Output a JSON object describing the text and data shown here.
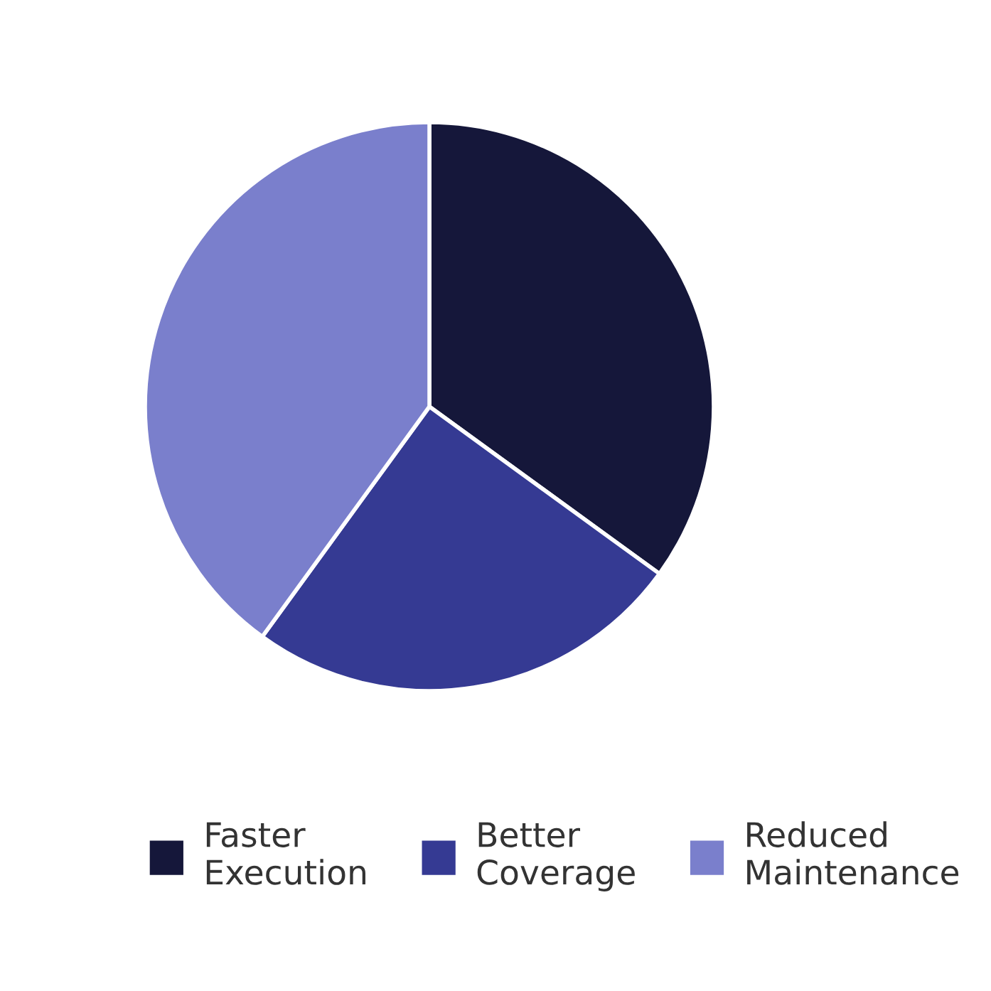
{
  "chart_data": {
    "type": "pie",
    "categories": [
      "Faster Execution",
      "Better Coverage",
      "Reduced Maintenance"
    ],
    "values": [
      35,
      25,
      40
    ],
    "colors": [
      "#15173a",
      "#353a93",
      "#7a7fcc"
    ],
    "legend": "bottom"
  }
}
